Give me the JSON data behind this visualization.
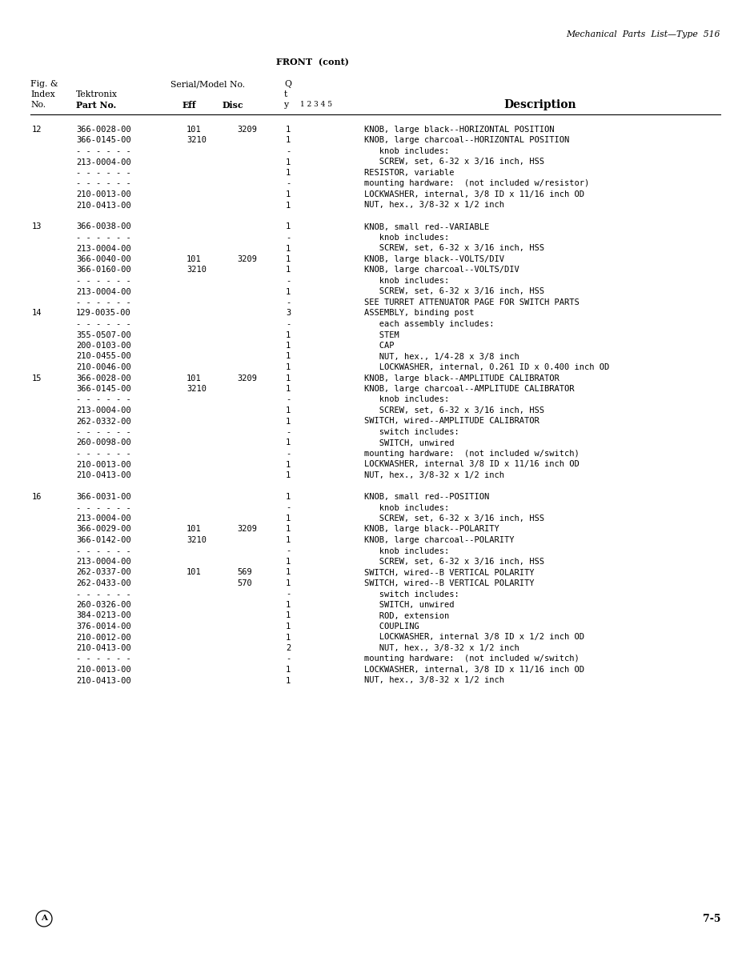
{
  "page_header_right": "Mechanical  Parts  List—Type  516",
  "section_title": "FRONT  (cont)",
  "footer_left": "A",
  "footer_right": "7-5",
  "rows": [
    {
      "fig": "12",
      "part": "366-0028-00",
      "eff": "101",
      "disc": "3209",
      "qty": "1",
      "desc": "KNOB, large black--HORIZONTAL POSITION"
    },
    {
      "fig": "",
      "part": "366-0145-00",
      "eff": "3210",
      "disc": "",
      "qty": "1",
      "desc": "KNOB, large charcoal--HORIZONTAL POSITION"
    },
    {
      "fig": "",
      "part": "- - - - - -",
      "eff": "",
      "disc": "",
      "qty": "-",
      "desc": "   knob includes:"
    },
    {
      "fig": "",
      "part": "213-0004-00",
      "eff": "",
      "disc": "",
      "qty": "1",
      "desc": "   SCREW, set, 6-32 x 3/16 inch, HSS"
    },
    {
      "fig": "",
      "part": "- - - - - -",
      "eff": "",
      "disc": "",
      "qty": "1",
      "desc": "RESISTOR, variable"
    },
    {
      "fig": "",
      "part": "- - - - - -",
      "eff": "",
      "disc": "",
      "qty": "-",
      "desc": "mounting hardware:  (not included w/resistor)"
    },
    {
      "fig": "",
      "part": "210-0013-00",
      "eff": "",
      "disc": "",
      "qty": "1",
      "desc": "LOCKWASHER, internal, 3/8 ID x 11/16 inch OD"
    },
    {
      "fig": "",
      "part": "210-0413-00",
      "eff": "",
      "disc": "",
      "qty": "1",
      "desc": "NUT, hex., 3/8-32 x 1/2 inch"
    },
    {
      "fig": "",
      "part": "",
      "eff": "",
      "disc": "",
      "qty": "",
      "desc": ""
    },
    {
      "fig": "13",
      "part": "366-0038-00",
      "eff": "",
      "disc": "",
      "qty": "1",
      "desc": "KNOB, small red--VARIABLE"
    },
    {
      "fig": "",
      "part": "- - - - - -",
      "eff": "",
      "disc": "",
      "qty": "-",
      "desc": "   knob includes:"
    },
    {
      "fig": "",
      "part": "213-0004-00",
      "eff": "",
      "disc": "",
      "qty": "1",
      "desc": "   SCREW, set, 6-32 x 3/16 inch, HSS"
    },
    {
      "fig": "",
      "part": "366-0040-00",
      "eff": "101",
      "disc": "3209",
      "qty": "1",
      "desc": "KNOB, large black--VOLTS/DIV"
    },
    {
      "fig": "",
      "part": "366-0160-00",
      "eff": "3210",
      "disc": "",
      "qty": "1",
      "desc": "KNOB, large charcoal--VOLTS/DIV"
    },
    {
      "fig": "",
      "part": "- - - - - -",
      "eff": "",
      "disc": "",
      "qty": "-",
      "desc": "   knob includes:"
    },
    {
      "fig": "",
      "part": "213-0004-00",
      "eff": "",
      "disc": "",
      "qty": "1",
      "desc": "   SCREW, set, 6-32 x 3/16 inch, HSS"
    },
    {
      "fig": "",
      "part": "- - - - - -",
      "eff": "",
      "disc": "",
      "qty": "-",
      "desc": "SEE TURRET ATTENUATOR PAGE FOR SWITCH PARTS"
    },
    {
      "fig": "14",
      "part": "129-0035-00",
      "eff": "",
      "disc": "",
      "qty": "3",
      "desc": "ASSEMBLY, binding post"
    },
    {
      "fig": "",
      "part": "- - - - - -",
      "eff": "",
      "disc": "",
      "qty": "-",
      "desc": "   each assembly includes:"
    },
    {
      "fig": "",
      "part": "355-0507-00",
      "eff": "",
      "disc": "",
      "qty": "1",
      "desc": "   STEM"
    },
    {
      "fig": "",
      "part": "200-0103-00",
      "eff": "",
      "disc": "",
      "qty": "1",
      "desc": "   CAP"
    },
    {
      "fig": "",
      "part": "210-0455-00",
      "eff": "",
      "disc": "",
      "qty": "1",
      "desc": "   NUT, hex., 1/4-28 x 3/8 inch"
    },
    {
      "fig": "",
      "part": "210-0046-00",
      "eff": "",
      "disc": "",
      "qty": "1",
      "desc": "   LOCKWASHER, internal, 0.261 ID x 0.400 inch OD"
    },
    {
      "fig": "15",
      "part": "366-0028-00",
      "eff": "101",
      "disc": "3209",
      "qty": "1",
      "desc": "KNOB, large black--AMPLITUDE CALIBRATOR"
    },
    {
      "fig": "",
      "part": "366-0145-00",
      "eff": "3210",
      "disc": "",
      "qty": "1",
      "desc": "KNOB, large charcoal--AMPLITUDE CALIBRATOR"
    },
    {
      "fig": "",
      "part": "- - - - - -",
      "eff": "",
      "disc": "",
      "qty": "-",
      "desc": "   knob includes:"
    },
    {
      "fig": "",
      "part": "213-0004-00",
      "eff": "",
      "disc": "",
      "qty": "1",
      "desc": "   SCREW, set, 6-32 x 3/16 inch, HSS"
    },
    {
      "fig": "",
      "part": "262-0332-00",
      "eff": "",
      "disc": "",
      "qty": "1",
      "desc": "SWITCH, wired--AMPLITUDE CALIBRATOR"
    },
    {
      "fig": "",
      "part": "- - - - - -",
      "eff": "",
      "disc": "",
      "qty": "-",
      "desc": "   switch includes:"
    },
    {
      "fig": "",
      "part": "260-0098-00",
      "eff": "",
      "disc": "",
      "qty": "1",
      "desc": "   SWITCH, unwired"
    },
    {
      "fig": "",
      "part": "- - - - - -",
      "eff": "",
      "disc": "",
      "qty": "-",
      "desc": "mounting hardware:  (not included w/switch)"
    },
    {
      "fig": "",
      "part": "210-0013-00",
      "eff": "",
      "disc": "",
      "qty": "1",
      "desc": "LOCKWASHER, internal 3/8 ID x 11/16 inch OD"
    },
    {
      "fig": "",
      "part": "210-0413-00",
      "eff": "",
      "disc": "",
      "qty": "1",
      "desc": "NUT, hex., 3/8-32 x 1/2 inch"
    },
    {
      "fig": "",
      "part": "",
      "eff": "",
      "disc": "",
      "qty": "",
      "desc": ""
    },
    {
      "fig": "16",
      "part": "366-0031-00",
      "eff": "",
      "disc": "",
      "qty": "1",
      "desc": "KNOB, small red--POSITION"
    },
    {
      "fig": "",
      "part": "- - - - - -",
      "eff": "",
      "disc": "",
      "qty": "-",
      "desc": "   knob includes:"
    },
    {
      "fig": "",
      "part": "213-0004-00",
      "eff": "",
      "disc": "",
      "qty": "1",
      "desc": "   SCREW, set, 6-32 x 3/16 inch, HSS"
    },
    {
      "fig": "",
      "part": "366-0029-00",
      "eff": "101",
      "disc": "3209",
      "qty": "1",
      "desc": "KNOB, large black--POLARITY"
    },
    {
      "fig": "",
      "part": "366-0142-00",
      "eff": "3210",
      "disc": "",
      "qty": "1",
      "desc": "KNOB, large charcoal--POLARITY"
    },
    {
      "fig": "",
      "part": "- - - - - -",
      "eff": "",
      "disc": "",
      "qty": "-",
      "desc": "   knob includes:"
    },
    {
      "fig": "",
      "part": "213-0004-00",
      "eff": "",
      "disc": "",
      "qty": "1",
      "desc": "   SCREW, set, 6-32 x 3/16 inch, HSS"
    },
    {
      "fig": "",
      "part": "262-0337-00",
      "eff": "101",
      "disc": "569",
      "qty": "1",
      "desc": "SWITCH, wired--B VERTICAL POLARITY"
    },
    {
      "fig": "",
      "part": "262-0433-00",
      "eff": "",
      "disc": "570",
      "qty": "1",
      "desc": "SWITCH, wired--B VERTICAL POLARITY"
    },
    {
      "fig": "",
      "part": "- - - - - -",
      "eff": "",
      "disc": "",
      "qty": "-",
      "desc": "   switch includes:"
    },
    {
      "fig": "",
      "part": "260-0326-00",
      "eff": "",
      "disc": "",
      "qty": "1",
      "desc": "   SWITCH, unwired"
    },
    {
      "fig": "",
      "part": "384-0213-00",
      "eff": "",
      "disc": "",
      "qty": "1",
      "desc": "   ROD, extension"
    },
    {
      "fig": "",
      "part": "376-0014-00",
      "eff": "",
      "disc": "",
      "qty": "1",
      "desc": "   COUPLING"
    },
    {
      "fig": "",
      "part": "210-0012-00",
      "eff": "",
      "disc": "",
      "qty": "1",
      "desc": "   LOCKWASHER, internal 3/8 ID x 1/2 inch OD"
    },
    {
      "fig": "",
      "part": "210-0413-00",
      "eff": "",
      "disc": "",
      "qty": "2",
      "desc": "   NUT, hex., 3/8-32 x 1/2 inch"
    },
    {
      "fig": "",
      "part": "- - - - - -",
      "eff": "",
      "disc": "",
      "qty": "-",
      "desc": "mounting hardware:  (not included w/switch)"
    },
    {
      "fig": "",
      "part": "210-0013-00",
      "eff": "",
      "disc": "",
      "qty": "1",
      "desc": "LOCKWASHER, internal, 3/8 ID x 11/16 inch OD"
    },
    {
      "fig": "",
      "part": "210-0413-00",
      "eff": "",
      "disc": "",
      "qty": "1",
      "desc": "NUT, hex., 3/8-32 x 1/2 inch"
    }
  ]
}
